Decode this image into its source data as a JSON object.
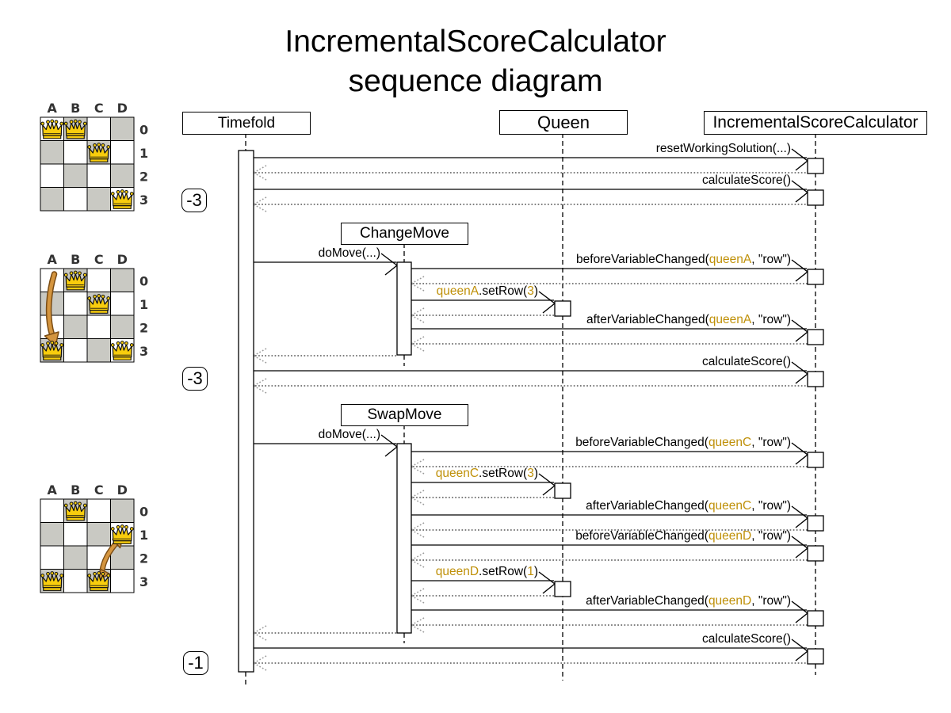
{
  "title": {
    "line1": "IncrementalScoreCalculator",
    "line2": "sequence diagram"
  },
  "colors": {
    "accent": "#bf9008",
    "move_arrow": "#d4953f",
    "move_arrow_outline": "#7a4c14",
    "board_dark": "#c9c9c3",
    "queen_gold": "#f8cd0d"
  },
  "lifelines": [
    {
      "name": "Timefold"
    },
    {
      "name": "Queen"
    },
    {
      "name": "IncrementalScoreCalculator"
    }
  ],
  "fragments": [
    {
      "name": "ChangeMove"
    },
    {
      "name": "SwapMove"
    }
  ],
  "scores": [
    {
      "label": "-3"
    },
    {
      "label": "-3"
    },
    {
      "label": "-1"
    }
  ],
  "messages": [
    {
      "name": "resetWorkingSolution",
      "parts": [
        {
          "t": "resetWorkingSolution(...)"
        }
      ]
    },
    {
      "name": "calculateScore-1",
      "parts": [
        {
          "t": "calculateScore()"
        }
      ]
    },
    {
      "name": "doMove-changeMove",
      "parts": [
        {
          "t": "doMove(...)"
        }
      ]
    },
    {
      "name": "beforeVariableChanged-queenA",
      "parts": [
        {
          "t": "beforeVariableChanged("
        },
        {
          "t": "queenA",
          "c": "accent"
        },
        {
          "t": ", \"row\")"
        }
      ]
    },
    {
      "name": "setRow-queenA",
      "parts": [
        {
          "t": "queenA",
          "c": "accent"
        },
        {
          "t": ".setRow("
        },
        {
          "t": "3",
          "c": "accent"
        },
        {
          "t": ")"
        }
      ]
    },
    {
      "name": "afterVariableChanged-queenA",
      "parts": [
        {
          "t": "afterVariableChanged("
        },
        {
          "t": "queenA",
          "c": "accent"
        },
        {
          "t": ", \"row\")"
        }
      ]
    },
    {
      "name": "calculateScore-2",
      "parts": [
        {
          "t": "calculateScore()"
        }
      ]
    },
    {
      "name": "doMove-swapMove",
      "parts": [
        {
          "t": "doMove(...)"
        }
      ]
    },
    {
      "name": "beforeVariableChanged-queenC",
      "parts": [
        {
          "t": "beforeVariableChanged("
        },
        {
          "t": "queenC",
          "c": "accent"
        },
        {
          "t": ", \"row\")"
        }
      ]
    },
    {
      "name": "setRow-queenC",
      "parts": [
        {
          "t": "queenC",
          "c": "accent"
        },
        {
          "t": ".setRow("
        },
        {
          "t": "3",
          "c": "accent"
        },
        {
          "t": ")"
        }
      ]
    },
    {
      "name": "afterVariableChanged-queenC",
      "parts": [
        {
          "t": "afterVariableChanged("
        },
        {
          "t": "queenC",
          "c": "accent"
        },
        {
          "t": ", \"row\")"
        }
      ]
    },
    {
      "name": "beforeVariableChanged-queenD",
      "parts": [
        {
          "t": "beforeVariableChanged("
        },
        {
          "t": "queenD",
          "c": "accent"
        },
        {
          "t": ", \"row\")"
        }
      ]
    },
    {
      "name": "setRow-queenD",
      "parts": [
        {
          "t": "queenD",
          "c": "accent"
        },
        {
          "t": ".setRow("
        },
        {
          "t": "1",
          "c": "accent"
        },
        {
          "t": ")"
        }
      ]
    },
    {
      "name": "afterVariableChanged-queenD",
      "parts": [
        {
          "t": "afterVariableChanged("
        },
        {
          "t": "queenD",
          "c": "accent"
        },
        {
          "t": ", \"row\")"
        }
      ]
    },
    {
      "name": "calculateScore-3",
      "parts": [
        {
          "t": "calculateScore()"
        }
      ]
    }
  ],
  "boards": [
    {
      "cols": [
        "A",
        "B",
        "C",
        "D"
      ],
      "rows": [
        "0",
        "1",
        "2",
        "3"
      ],
      "queens": [
        [
          0,
          0
        ],
        [
          1,
          0
        ],
        [
          2,
          1
        ],
        [
          3,
          3
        ]
      ]
    },
    {
      "cols": [
        "A",
        "B",
        "C",
        "D"
      ],
      "rows": [
        "0",
        "1",
        "2",
        "3"
      ],
      "queens": [
        [
          1,
          0
        ],
        [
          2,
          1
        ],
        [
          0,
          3
        ],
        [
          3,
          3
        ]
      ],
      "move": {
        "type": "change",
        "from": [
          0,
          0
        ],
        "to": [
          0,
          3
        ]
      }
    },
    {
      "cols": [
        "A",
        "B",
        "C",
        "D"
      ],
      "rows": [
        "0",
        "1",
        "2",
        "3"
      ],
      "queens": [
        [
          1,
          0
        ],
        [
          3,
          1
        ],
        [
          0,
          3
        ],
        [
          2,
          3
        ]
      ],
      "move": {
        "type": "swap",
        "from": [
          3,
          1
        ],
        "to": [
          2,
          3
        ]
      }
    }
  ]
}
